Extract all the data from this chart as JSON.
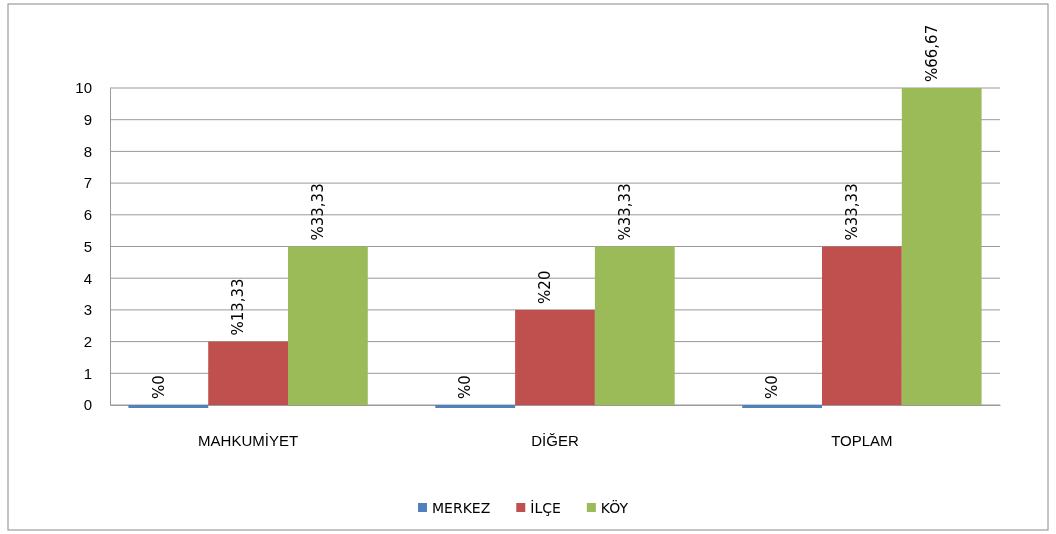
{
  "chart_data": {
    "type": "bar",
    "categories": [
      "MAHKUMİYET",
      "DİĞER",
      "TOPLAM"
    ],
    "series": [
      {
        "name": "MERKEZ",
        "color": "#4f81bd",
        "values": [
          0,
          0,
          0
        ]
      },
      {
        "name": "İLÇE",
        "color": "#c0504d",
        "values": [
          2,
          3,
          5
        ]
      },
      {
        "name": "KÖY",
        "color": "#9bbb59",
        "values": [
          5,
          5,
          10
        ]
      }
    ],
    "annotations": [
      "%0",
      "%0",
      "%0",
      "%13,33",
      "%20",
      "%33,33",
      "%33,33",
      "%33,33",
      "%66,67"
    ],
    "ylim": [
      0,
      10
    ],
    "yticks": [
      0,
      1,
      2,
      3,
      4,
      5,
      6,
      7,
      8,
      9,
      10
    ],
    "grid": "y",
    "legend": "bottom"
  }
}
